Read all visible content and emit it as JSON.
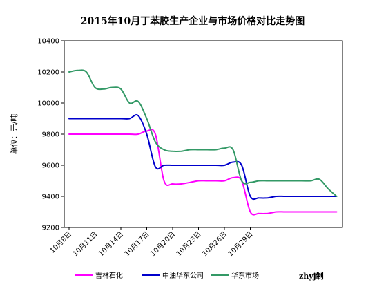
{
  "chart_data": {
    "type": "line",
    "title": "2015年10月丁苯胶生产企业与市场价格对比走势图",
    "ylabel": "单位：元/吨",
    "xlabel": "",
    "ylim": [
      9200,
      10400
    ],
    "yticks": [
      9200,
      9400,
      9600,
      9800,
      10000,
      10200,
      10400
    ],
    "x_tick_labels": [
      "10月8日",
      "10月11日",
      "10月14日",
      "10月17日",
      "10月20日",
      "10月23日",
      "10月26日",
      "10月29日"
    ],
    "grid": false,
    "legend_position": "bottom",
    "series": [
      {
        "name": "吉林石化",
        "color": "#ff00ff",
        "values": [
          9800,
          9800,
          9800,
          9800,
          9800,
          9800,
          9800,
          9800,
          9800,
          9820,
          9800,
          9500,
          9480,
          9480,
          9490,
          9500,
          9500,
          9500,
          9500,
          9520,
          9500,
          9300,
          9290,
          9290,
          9300,
          9300,
          9300,
          9300,
          9300,
          9300,
          9300,
          9300
        ]
      },
      {
        "name": "中油华东公司",
        "color": "#0000cc",
        "values": [
          9900,
          9900,
          9900,
          9900,
          9900,
          9900,
          9900,
          9900,
          9920,
          9800,
          9590,
          9600,
          9600,
          9600,
          9600,
          9600,
          9600,
          9600,
          9600,
          9620,
          9600,
          9400,
          9390,
          9390,
          9400,
          9400,
          9400,
          9400,
          9400,
          9400,
          9400,
          9400
        ]
      },
      {
        "name": "华东市场",
        "color": "#339966",
        "values": [
          10200,
          10210,
          10200,
          10100,
          10090,
          10100,
          10090,
          10000,
          10010,
          9900,
          9750,
          9700,
          9690,
          9690,
          9700,
          9700,
          9700,
          9700,
          9710,
          9700,
          9500,
          9490,
          9500,
          9500,
          9500,
          9500,
          9500,
          9500,
          9500,
          9510,
          9450,
          9400
        ]
      }
    ]
  },
  "credit": "zhyj制"
}
